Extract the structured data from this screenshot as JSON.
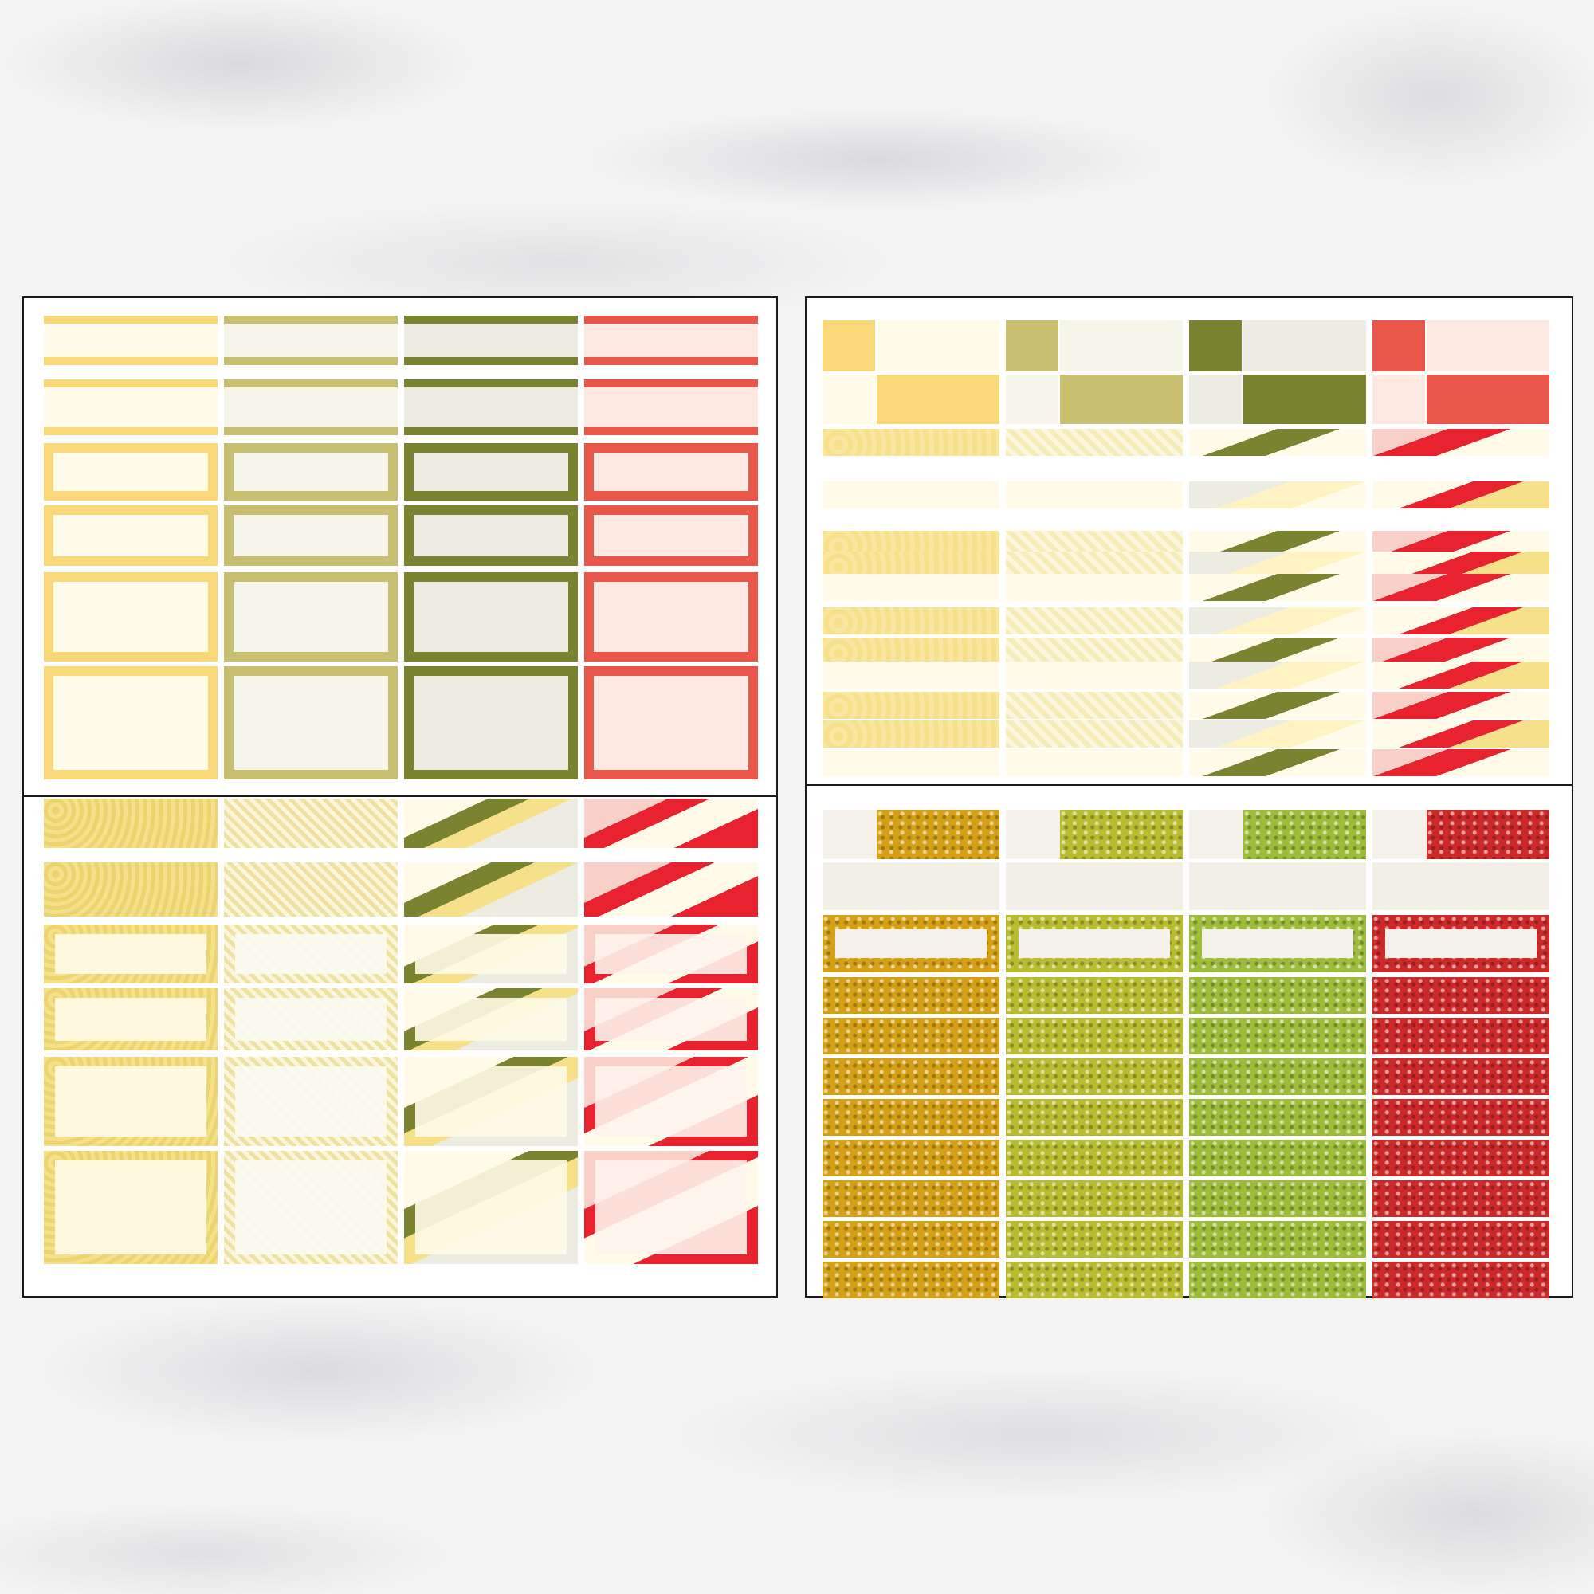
{
  "palette": {
    "yellow": "#f8d878",
    "yellow_light": "#fffbe8",
    "sage": "#c8c070",
    "sage_light": "#f6f5ea",
    "olive": "#7a8430",
    "olive_light": "#ecece2",
    "coral": "#e8574a",
    "coral_light": "#fde8e2",
    "glitter_gold": "#d4a016",
    "glitter_olive": "#b8bc30",
    "glitter_lime": "#9cbc3a",
    "glitter_red": "#cc2a2a",
    "brush_red": "#e8222e",
    "blush": "#f8d0c8"
  },
  "sheets": [
    {
      "name": "solid-boxes-sheet",
      "style": "solid"
    },
    {
      "name": "checker-patterns-sheet",
      "style": "pattern-top"
    },
    {
      "name": "pattern-boxes-sheet",
      "style": "pattern-boxes"
    },
    {
      "name": "glitter-sheet",
      "style": "glitter"
    }
  ],
  "columns": [
    "yellow",
    "sage",
    "olive",
    "coral"
  ]
}
